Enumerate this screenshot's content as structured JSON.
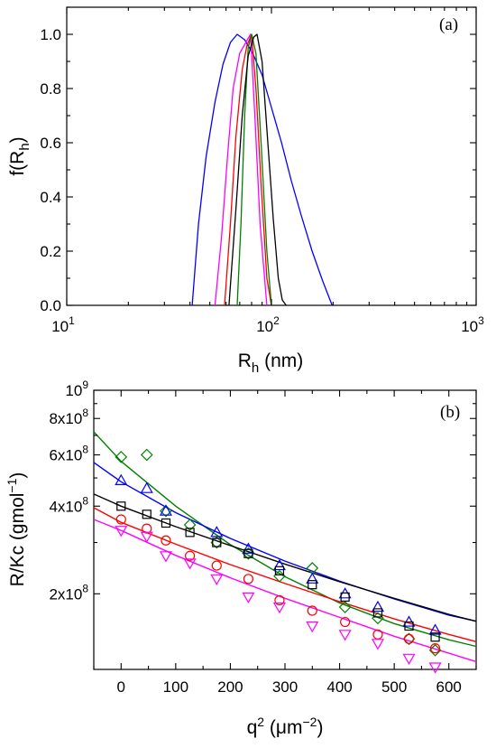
{
  "chart_data": [
    {
      "type": "line",
      "panel_label": "(a)",
      "xlabel": "R",
      "xlabel_sub": "h",
      "xlabel_unit": " (nm)",
      "ylabel": "f(R",
      "ylabel_sub": "h",
      "ylabel_end": ")",
      "xscale": "log",
      "xlim": [
        10,
        1000
      ],
      "ylim": [
        0,
        1.1
      ],
      "xticks": [
        {
          "value": 10,
          "base": "10",
          "exp": "1"
        },
        {
          "value": 100,
          "base": "10",
          "exp": "2"
        },
        {
          "value": 1000,
          "base": "10",
          "exp": "3"
        }
      ],
      "yticks": [
        {
          "value": 0,
          "label": "0.0"
        },
        {
          "value": 0.2,
          "label": "0.2"
        },
        {
          "value": 0.4,
          "label": "0.4"
        },
        {
          "value": 0.6,
          "label": "0.6"
        },
        {
          "value": 0.8,
          "label": "0.8"
        },
        {
          "value": 1.0,
          "label": "1.0"
        }
      ],
      "grid": false,
      "series": [
        {
          "color": "#0000ff",
          "points": [
            [
              41,
              0
            ],
            [
              44,
              0.3
            ],
            [
              48,
              0.55
            ],
            [
              53,
              0.75
            ],
            [
              58,
              0.89
            ],
            [
              63,
              0.97
            ],
            [
              68,
              1.0
            ],
            [
              74,
              0.98
            ],
            [
              81,
              0.93
            ],
            [
              90,
              0.85
            ],
            [
              100,
              0.73
            ],
            [
              112,
              0.6
            ],
            [
              125,
              0.46
            ],
            [
              140,
              0.33
            ],
            [
              158,
              0.2
            ],
            [
              178,
              0.09
            ],
            [
              198,
              0
            ]
          ]
        },
        {
          "color": "#ff00ff",
          "points": [
            [
              53,
              0
            ],
            [
              57,
              0.25
            ],
            [
              61,
              0.55
            ],
            [
              65,
              0.8
            ],
            [
              70,
              0.93
            ],
            [
              75,
              0.97
            ],
            [
              79,
              1.0
            ],
            [
              83,
              0.7
            ],
            [
              88,
              0.3
            ],
            [
              95,
              0
            ]
          ]
        },
        {
          "color": "#ff0000",
          "points": [
            [
              59,
              0
            ],
            [
              63,
              0.3
            ],
            [
              67,
              0.62
            ],
            [
              72,
              0.87
            ],
            [
              76,
              0.96
            ],
            [
              80,
              1.0
            ],
            [
              84,
              0.8
            ],
            [
              89,
              0.45
            ],
            [
              95,
              0.1
            ],
            [
              100,
              0
            ]
          ]
        },
        {
          "color": "#008000",
          "points": [
            [
              68,
              0
            ],
            [
              71,
              0.3
            ],
            [
              74,
              0.7
            ],
            [
              77,
              0.95
            ],
            [
              80,
              1.0
            ],
            [
              84,
              0.93
            ],
            [
              89,
              0.6
            ],
            [
              95,
              0.2
            ],
            [
              100,
              0
            ]
          ]
        },
        {
          "color": "#000000",
          "points": [
            [
              62,
              0
            ],
            [
              67,
              0.35
            ],
            [
              72,
              0.7
            ],
            [
              77,
              0.92
            ],
            [
              82,
              0.99
            ],
            [
              85,
              1.0
            ],
            [
              90,
              0.9
            ],
            [
              96,
              0.6
            ],
            [
              102,
              0.32
            ],
            [
              108,
              0.1
            ],
            [
              113,
              0.02
            ],
            [
              118,
              0
            ]
          ]
        }
      ]
    },
    {
      "type": "scatter",
      "panel_label": "(b)",
      "xlabel": "q",
      "xlabel_sup": "2",
      "xlabel_unit": " (μm",
      "xlabel_unit_sup": "−2",
      "xlabel_end": ")",
      "ylabel": "R/Kc (gmol",
      "ylabel_sup": "−1",
      "ylabel_end": ")",
      "yscale": "log",
      "xlim": [
        -50,
        650
      ],
      "ylim": [
        110000000,
        1000000000
      ],
      "xticks": [
        {
          "value": 0,
          "label": "0"
        },
        {
          "value": 100,
          "label": "100"
        },
        {
          "value": 200,
          "label": "200"
        },
        {
          "value": 300,
          "label": "300"
        },
        {
          "value": 400,
          "label": "400"
        },
        {
          "value": 500,
          "label": "500"
        },
        {
          "value": 600,
          "label": "600"
        }
      ],
      "yticks": [
        {
          "value": 200000000,
          "mant": "2x10",
          "exp": "8"
        },
        {
          "value": 400000000,
          "mant": "4x10",
          "exp": "8"
        },
        {
          "value": 600000000,
          "mant": "6x10",
          "exp": "8"
        },
        {
          "value": 800000000,
          "mant": "8x10",
          "exp": "8"
        },
        {
          "value": 1000000000,
          "mant": "10",
          "exp": "9"
        }
      ],
      "yticks_minor": [
        300000000,
        500000000,
        700000000,
        900000000
      ],
      "grid": false,
      "series": [
        {
          "color": "#008000",
          "marker": "diamond",
          "x": [
            0,
            47,
            82,
            126,
            175,
            233,
            290,
            350,
            410,
            470,
            527,
            575
          ],
          "y": [
            590000000,
            600000000,
            385000000,
            345000000,
            300000000,
            275000000,
            230000000,
            245000000,
            180000000,
            165000000,
            140000000,
            128000000
          ],
          "fit": [
            [
              -50,
              720000000
            ],
            [
              0,
              570000000
            ],
            [
              100,
              400000000
            ],
            [
              200,
              295000000
            ],
            [
              300,
              229000000
            ],
            [
              400,
              186000000
            ],
            [
              500,
              158000000
            ],
            [
              600,
              139000000
            ],
            [
              650,
              132000000
            ]
          ]
        },
        {
          "color": "#0000ff",
          "marker": "triangle-up",
          "x": [
            0,
            47,
            82,
            175,
            233,
            290,
            350,
            410,
            470,
            527,
            575
          ],
          "y": [
            490000000,
            460000000,
            385000000,
            325000000,
            285000000,
            250000000,
            225000000,
            200000000,
            180000000,
            160000000,
            150000000
          ],
          "fit": [
            [
              -50,
              565000000
            ],
            [
              0,
              485000000
            ],
            [
              100,
              380000000
            ],
            [
              200,
              310000000
            ],
            [
              300,
              259000000
            ],
            [
              400,
              221000000
            ],
            [
              500,
              192000000
            ],
            [
              600,
              169000000
            ],
            [
              650,
              161000000
            ]
          ]
        },
        {
          "color": "#000000",
          "marker": "square",
          "x": [
            0,
            47,
            82,
            126,
            175,
            233,
            290,
            350,
            410,
            470,
            527,
            575
          ],
          "y": [
            400000000,
            375000000,
            350000000,
            325000000,
            300000000,
            275000000,
            240000000,
            215000000,
            195000000,
            172000000,
            155000000,
            142000000
          ],
          "fit": [
            [
              -50,
              440000000
            ],
            [
              0,
              400000000
            ],
            [
              100,
              340000000
            ],
            [
              200,
              293000000
            ],
            [
              300,
              253000000
            ],
            [
              400,
              220000000
            ],
            [
              500,
              193000000
            ],
            [
              600,
              170000000
            ],
            [
              650,
              161000000
            ]
          ]
        },
        {
          "color": "#ff0000",
          "marker": "circle",
          "x": [
            0,
            47,
            82,
            126,
            175,
            233,
            290,
            350,
            410,
            470,
            527,
            575
          ],
          "y": [
            360000000,
            335000000,
            305000000,
            270000000,
            250000000,
            225000000,
            190000000,
            175000000,
            160000000,
            145000000,
            140000000,
            130000000
          ],
          "fit": [
            [
              -50,
              395000000
            ],
            [
              0,
              352000000
            ],
            [
              100,
              296000000
            ],
            [
              200,
              252000000
            ],
            [
              300,
              217000000
            ],
            [
              400,
              188000000
            ],
            [
              500,
              164000000
            ],
            [
              600,
              145000000
            ],
            [
              650,
              137000000
            ]
          ]
        },
        {
          "color": "#ff00ff",
          "marker": "triangle-down",
          "x": [
            0,
            47,
            82,
            126,
            175,
            233,
            290,
            350,
            410,
            470,
            527,
            575
          ],
          "y": [
            330000000,
            315000000,
            270000000,
            255000000,
            225000000,
            195000000,
            180000000,
            155000000,
            145000000,
            135000000,
            120000000,
            112000000
          ],
          "fit": [
            [
              -50,
              360000000
            ],
            [
              0,
              330000000
            ],
            [
              100,
              271000000
            ],
            [
              200,
              227000000
            ],
            [
              300,
              193000000
            ],
            [
              400,
              166000000
            ],
            [
              500,
              143000000
            ],
            [
              600,
              125000000
            ],
            [
              650,
              117000000
            ]
          ]
        }
      ]
    }
  ]
}
